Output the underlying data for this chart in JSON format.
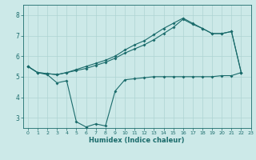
{
  "xlabel": "Humidex (Indice chaleur)",
  "xlim": [
    -0.5,
    23
  ],
  "ylim": [
    2.5,
    8.5
  ],
  "yticks": [
    3,
    4,
    5,
    6,
    7,
    8
  ],
  "xticks": [
    0,
    1,
    2,
    3,
    4,
    5,
    6,
    7,
    8,
    9,
    10,
    11,
    12,
    13,
    14,
    15,
    16,
    17,
    18,
    19,
    20,
    21,
    22,
    23
  ],
  "bg_color": "#cce9e8",
  "grid_color": "#aed4d3",
  "line_color": "#1a6b6b",
  "line1_x": [
    0,
    1,
    2,
    3,
    4,
    5,
    6,
    7,
    8,
    9,
    10,
    11,
    12,
    13,
    14,
    15,
    16,
    17,
    18,
    19,
    20,
    21,
    22
  ],
  "line1_y": [
    5.5,
    5.2,
    5.1,
    4.7,
    4.8,
    2.8,
    2.55,
    2.7,
    2.6,
    4.3,
    4.85,
    4.9,
    4.95,
    5.0,
    5.0,
    5.0,
    5.0,
    5.0,
    5.0,
    5.0,
    5.05,
    5.05,
    5.2
  ],
  "line2_x": [
    0,
    1,
    2,
    3,
    4,
    5,
    6,
    7,
    8,
    9,
    10,
    11,
    12,
    13,
    14,
    15,
    16,
    17,
    18,
    19,
    20,
    21,
    22
  ],
  "line2_y": [
    5.5,
    5.2,
    5.15,
    5.1,
    5.2,
    5.3,
    5.4,
    5.55,
    5.7,
    5.9,
    6.15,
    6.35,
    6.55,
    6.8,
    7.1,
    7.4,
    7.8,
    7.55,
    7.35,
    7.1,
    7.1,
    7.2,
    5.2
  ],
  "line3_x": [
    0,
    1,
    2,
    3,
    4,
    5,
    6,
    7,
    8,
    9,
    10,
    11,
    12,
    13,
    14,
    15,
    16,
    17,
    18,
    19,
    20,
    21,
    22
  ],
  "line3_y": [
    5.5,
    5.2,
    5.15,
    5.1,
    5.2,
    5.35,
    5.5,
    5.65,
    5.8,
    6.0,
    6.3,
    6.55,
    6.75,
    7.05,
    7.35,
    7.6,
    7.85,
    7.6,
    7.35,
    7.1,
    7.1,
    7.2,
    5.2
  ]
}
